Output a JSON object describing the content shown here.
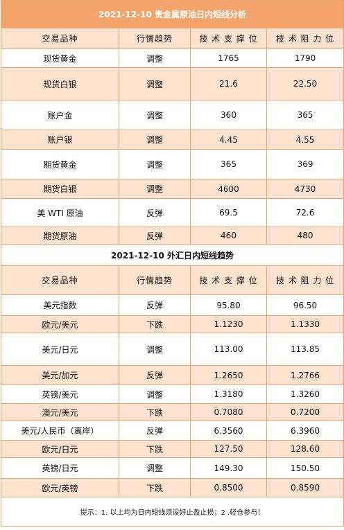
{
  "precious": {
    "date": "2021-12-10",
    "title": "贵金属原油日内短线分析",
    "headers": [
      "交易品种",
      "行情趋势",
      "技 术 支 撑 位",
      "技 术 阻 力 位"
    ],
    "rows": [
      [
        "现货黄金",
        "调整",
        "1765",
        "1790"
      ],
      [
        "现货白银",
        "调整",
        "21.6",
        "22.50"
      ],
      [
        "账户金",
        "调整",
        "360",
        "365"
      ],
      [
        "账户银",
        "调整",
        "4.45",
        "4.55"
      ],
      [
        "期货黄金",
        "调整",
        "365",
        "369"
      ],
      [
        "期货白银",
        "调整",
        "4600",
        "4730"
      ],
      [
        "美 WTI 原油",
        "反弹",
        "69.5",
        "72.6"
      ],
      [
        "期货原油",
        "反弹",
        "460",
        "480"
      ]
    ]
  },
  "forex": {
    "date": "2021-12-10",
    "title": "外汇日内短线趋势",
    "headers": [
      "交易品种",
      "行情趋势",
      "技 术 支 撑 位",
      "技 术 阻 力 位"
    ],
    "rows": [
      [
        "美元指数",
        "反弹",
        "95.80",
        "96.50"
      ],
      [
        "欧元/美元",
        "下跌",
        "1.1230",
        "1.1330"
      ],
      [
        "美元/日元",
        "调整",
        "113.00",
        "113.85"
      ],
      [
        "美元/加元",
        "反弹",
        "1.2650",
        "1.2766"
      ],
      [
        "英镑/美元",
        "调整",
        "1.3180",
        "1.3260"
      ],
      [
        "澳元/美元",
        "下跌",
        "0.7080",
        "0.7200"
      ],
      [
        "美元/人民币（离岸）",
        "反弹",
        "6.3560",
        "6.3960"
      ],
      [
        "欧元/日元",
        "下跌",
        "127.50",
        "128.60"
      ],
      [
        "英镑/日元",
        "调整",
        "149.30",
        "150.50"
      ],
      [
        "欧元/英镑",
        "下跌",
        "0.8500",
        "0.8590"
      ]
    ]
  },
  "note": "提示：1. 以上均为日内短线须设好止盈止损；2 .轻仓参与！"
}
